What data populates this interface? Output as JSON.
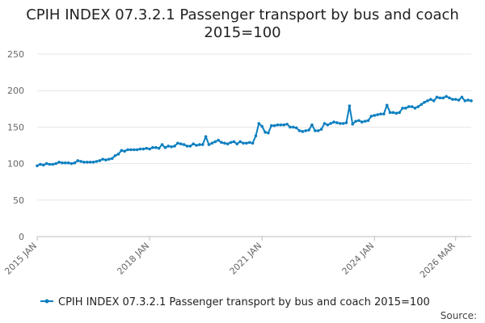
{
  "chart_data": {
    "type": "line",
    "title": "CPIH INDEX 07.3.2.1 Passenger transport by bus and coach",
    "subtitle": "2015=100",
    "xlabel": "",
    "ylabel": "",
    "ylim": [
      0,
      250
    ],
    "yticks": [
      "0",
      "50",
      "100",
      "150",
      "200",
      "250"
    ],
    "xticks": [
      {
        "label": "2015 JAN",
        "index": 0
      },
      {
        "label": "2018 JAN",
        "index": 36
      },
      {
        "label": "2021 JAN",
        "index": 72
      },
      {
        "label": "2024 JAN",
        "index": 108
      },
      {
        "label": "2026 MAR",
        "index": 134
      }
    ],
    "grid": true,
    "legend_position": "bottom",
    "series": [
      {
        "name": "CPIH INDEX 07.3.2.1 Passenger transport by bus and coach 2015=100",
        "color": "#0d7fc0",
        "values": [
          97,
          99,
          98,
          100,
          99,
          99,
          100,
          102,
          101,
          101,
          101,
          100,
          101,
          104,
          103,
          102,
          102,
          102,
          102,
          103,
          104,
          106,
          105,
          106,
          107,
          111,
          113,
          118,
          117,
          119,
          119,
          119,
          119,
          120,
          120,
          121,
          120,
          122,
          122,
          121,
          126,
          122,
          124,
          123,
          124,
          128,
          127,
          126,
          124,
          124,
          127,
          125,
          126,
          126,
          137,
          126,
          128,
          130,
          132,
          129,
          128,
          127,
          129,
          130,
          127,
          130,
          128,
          128,
          129,
          128,
          138,
          155,
          151,
          143,
          142,
          152,
          152,
          153,
          153,
          153,
          154,
          150,
          150,
          149,
          145,
          144,
          145,
          146,
          153,
          145,
          145,
          147,
          155,
          153,
          155,
          157,
          156,
          155,
          155,
          156,
          179,
          154,
          158,
          159,
          157,
          158,
          159,
          165,
          166,
          167,
          168,
          168,
          180,
          170,
          170,
          169,
          170,
          176,
          176,
          178,
          178,
          176,
          178,
          181,
          184,
          186,
          188,
          186,
          191,
          190,
          190,
          192,
          190,
          188,
          188,
          187,
          191,
          186,
          187,
          186
        ]
      }
    ]
  },
  "source_label": "Source:"
}
